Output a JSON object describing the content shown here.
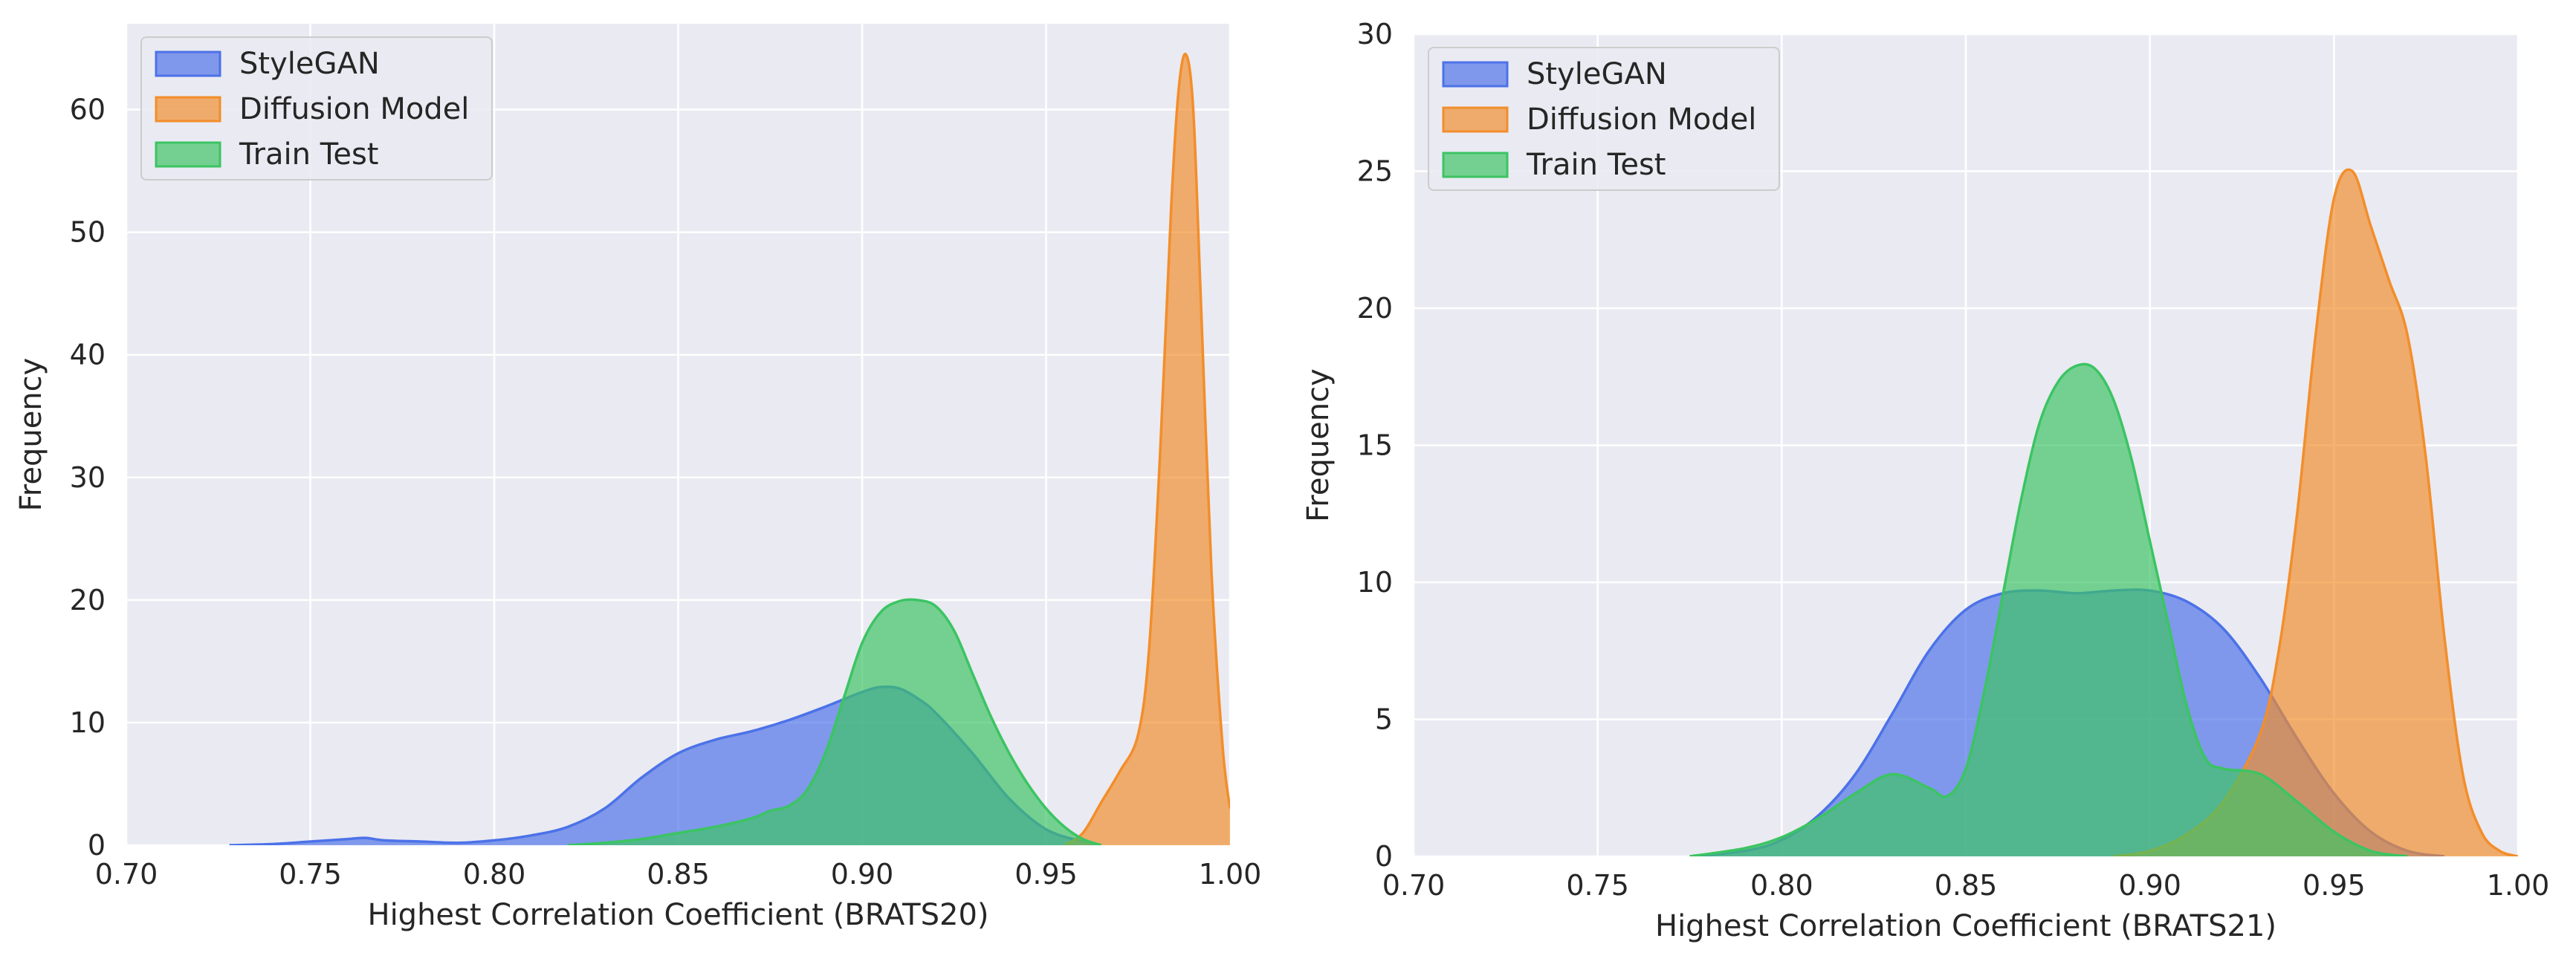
{
  "chart_data": [
    {
      "type": "area",
      "subtype": "kde-density",
      "title": "",
      "xlabel": "Highest Correlation Coefficient (BRATS20)",
      "ylabel": "Frequency",
      "xlim": [
        0.7,
        1.0
      ],
      "ylim": [
        0,
        67
      ],
      "xticks": [
        "0.70",
        "0.75",
        "0.80",
        "0.85",
        "0.90",
        "0.95",
        "1.00"
      ],
      "xtick_values": [
        0.7,
        0.75,
        0.8,
        0.85,
        0.9,
        0.95,
        1.0
      ],
      "yticks": [
        "0",
        "10",
        "20",
        "30",
        "40",
        "50",
        "60"
      ],
      "ytick_values": [
        0,
        10,
        20,
        30,
        40,
        50,
        60
      ],
      "grid": true,
      "legend_position": "top-left",
      "series": [
        {
          "name": "StyleGAN",
          "color": "#4c72e8",
          "x": [
            0.728,
            0.74,
            0.75,
            0.76,
            0.765,
            0.77,
            0.78,
            0.79,
            0.8,
            0.81,
            0.82,
            0.83,
            0.84,
            0.85,
            0.86,
            0.87,
            0.88,
            0.89,
            0.9,
            0.905,
            0.91,
            0.915,
            0.92,
            0.93,
            0.94,
            0.95,
            0.96,
            0.965
          ],
          "y": [
            0,
            0.1,
            0.3,
            0.5,
            0.6,
            0.4,
            0.3,
            0.2,
            0.4,
            0.8,
            1.5,
            3.0,
            5.5,
            7.5,
            8.6,
            9.3,
            10.2,
            11.3,
            12.5,
            12.9,
            12.8,
            12.0,
            10.8,
            7.5,
            3.8,
            1.3,
            0.3,
            0
          ]
        },
        {
          "name": "Diffusion Model",
          "color": "#f28e2b",
          "x": [
            0.955,
            0.96,
            0.965,
            0.97,
            0.975,
            0.978,
            0.981,
            0.984,
            0.986,
            0.988,
            0.99,
            0.992,
            0.995,
            0.998,
            1.0
          ],
          "y": [
            0,
            1.0,
            3.5,
            6.0,
            9.0,
            16.0,
            32.0,
            52.0,
            61.5,
            64.5,
            60.0,
            45.0,
            22.0,
            8.0,
            3.0
          ]
        },
        {
          "name": "Train Test",
          "color": "#3cc463",
          "x": [
            0.82,
            0.83,
            0.84,
            0.85,
            0.86,
            0.87,
            0.875,
            0.88,
            0.885,
            0.89,
            0.895,
            0.9,
            0.905,
            0.91,
            0.915,
            0.92,
            0.925,
            0.93,
            0.935,
            0.94,
            0.945,
            0.95,
            0.955,
            0.96,
            0.965
          ],
          "y": [
            0,
            0.2,
            0.5,
            1.0,
            1.5,
            2.2,
            2.8,
            3.2,
            4.5,
            7.5,
            12.0,
            16.5,
            19.0,
            19.9,
            20.0,
            19.5,
            17.5,
            14.0,
            10.5,
            7.5,
            5.0,
            3.0,
            1.5,
            0.5,
            0
          ]
        }
      ]
    },
    {
      "type": "area",
      "subtype": "kde-density",
      "title": "",
      "xlabel": "Highest Correlation Coefficient (BRATS21)",
      "ylabel": "Frequency",
      "xlim": [
        0.7,
        1.0
      ],
      "ylim": [
        0,
        30
      ],
      "xticks": [
        "0.70",
        "0.75",
        "0.80",
        "0.85",
        "0.90",
        "0.95",
        "1.00"
      ],
      "xtick_values": [
        0.7,
        0.75,
        0.8,
        0.85,
        0.9,
        0.95,
        1.0
      ],
      "yticks": [
        "0",
        "5",
        "10",
        "15",
        "20",
        "25",
        "30"
      ],
      "ytick_values": [
        0,
        5,
        10,
        15,
        20,
        25,
        30
      ],
      "grid": true,
      "legend_position": "top-left",
      "series": [
        {
          "name": "StyleGAN",
          "color": "#4c72e8",
          "x": [
            0.775,
            0.79,
            0.8,
            0.81,
            0.82,
            0.83,
            0.84,
            0.85,
            0.86,
            0.87,
            0.88,
            0.89,
            0.9,
            0.91,
            0.92,
            0.93,
            0.94,
            0.95,
            0.96,
            0.97,
            0.98
          ],
          "y": [
            0,
            0.2,
            0.6,
            1.5,
            3.0,
            5.2,
            7.5,
            9.0,
            9.6,
            9.7,
            9.6,
            9.7,
            9.7,
            9.3,
            8.3,
            6.5,
            4.3,
            2.3,
            0.9,
            0.2,
            0
          ]
        },
        {
          "name": "Diffusion Model",
          "color": "#f28e2b",
          "x": [
            0.89,
            0.9,
            0.91,
            0.92,
            0.93,
            0.935,
            0.94,
            0.945,
            0.95,
            0.955,
            0.96,
            0.965,
            0.97,
            0.975,
            0.98,
            0.985,
            0.99,
            0.995,
            1.0
          ],
          "y": [
            0,
            0.2,
            0.8,
            2.0,
            4.5,
            7.5,
            12.5,
            19.0,
            24.0,
            25.0,
            23.0,
            21.0,
            19.0,
            14.5,
            8.0,
            3.0,
            0.9,
            0.2,
            0
          ]
        },
        {
          "name": "Train Test",
          "color": "#3cc463",
          "x": [
            0.775,
            0.79,
            0.8,
            0.81,
            0.82,
            0.83,
            0.84,
            0.845,
            0.85,
            0.855,
            0.86,
            0.865,
            0.87,
            0.875,
            0.88,
            0.885,
            0.89,
            0.895,
            0.9,
            0.905,
            0.91,
            0.915,
            0.92,
            0.93,
            0.94,
            0.95,
            0.96,
            0.97
          ],
          "y": [
            0,
            0.3,
            0.7,
            1.4,
            2.3,
            3.0,
            2.5,
            2.2,
            3.2,
            6.0,
            9.5,
            13.0,
            15.8,
            17.3,
            17.9,
            17.8,
            16.7,
            14.5,
            11.5,
            8.5,
            5.5,
            3.6,
            3.2,
            3.0,
            2.0,
            0.9,
            0.2,
            0
          ]
        }
      ]
    }
  ]
}
